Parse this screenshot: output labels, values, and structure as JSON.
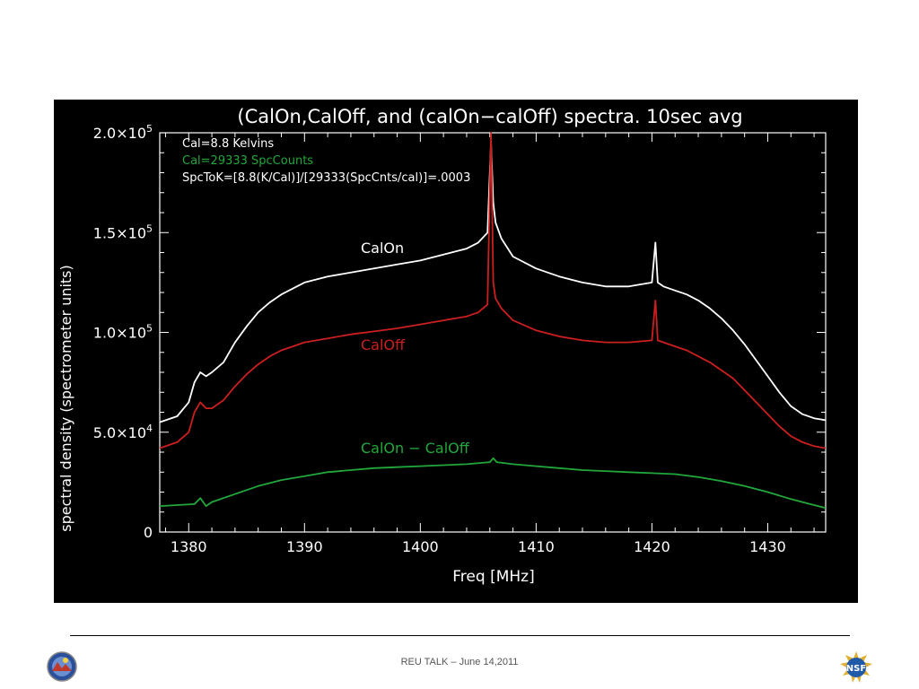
{
  "footer": {
    "text": "REU TALK – June 14,2011"
  },
  "logos": {
    "left": "observatory-logo",
    "right": "nsf-logo",
    "right_text": "NSF"
  },
  "colors": {
    "background": "#000000",
    "calon": "#ffffff",
    "caloff": "#cc1f1f",
    "diff": "#22a83a"
  },
  "chart_data": {
    "type": "line",
    "title": "(CalOn,CalOff, and (calOn−calOff) spectra. 10sec avg",
    "xlabel": "Freq [MHz]",
    "ylabel": "spectral density (spectrometer units)",
    "xlim": [
      1377.5,
      1435
    ],
    "ylim": [
      0,
      200000
    ],
    "xticks": [
      1380,
      1390,
      1400,
      1410,
      1420,
      1430
    ],
    "xtick_labels": [
      "1380",
      "1390",
      "1400",
      "1410",
      "1420",
      "1430"
    ],
    "yticks": [
      0,
      50000,
      100000,
      150000,
      200000
    ],
    "ytick_labels": [
      {
        "mant": "0",
        "exp": ""
      },
      {
        "mant": "5.0×10",
        "exp": "4"
      },
      {
        "mant": "1.0×10",
        "exp": "5"
      },
      {
        "mant": "1.5×10",
        "exp": "5"
      },
      {
        "mant": "2.0×10",
        "exp": "5"
      }
    ],
    "annotations": [
      {
        "text": "Cal=8.8  Kelvins",
        "color": "#ffffff"
      },
      {
        "text": "Cal=29333  SpcCounts",
        "color": "#22a83a"
      },
      {
        "text": "SpcToK=[8.8(K/Cal)]/[29333(SpcCnts/cal)]=.0003",
        "color": "#ffffff"
      }
    ],
    "series": [
      {
        "name": "CalOn",
        "color": "#ffffff",
        "x": [
          1377.5,
          1379,
          1380,
          1380.5,
          1381,
          1381.5,
          1382,
          1383,
          1384,
          1385,
          1386,
          1387,
          1388,
          1389,
          1390,
          1392,
          1394,
          1396,
          1398,
          1400,
          1402,
          1404,
          1405,
          1405.8,
          1406.1,
          1406.3,
          1406.5,
          1407,
          1408,
          1410,
          1412,
          1414,
          1416,
          1418,
          1420,
          1420.3,
          1420.5,
          1421,
          1422,
          1423,
          1424,
          1425,
          1426,
          1427,
          1428,
          1429,
          1430,
          1431,
          1432,
          1433,
          1434,
          1435
        ],
        "y": [
          55000,
          58000,
          65000,
          75000,
          80000,
          78000,
          80000,
          85000,
          95000,
          103000,
          110000,
          115000,
          119000,
          122000,
          125000,
          128000,
          130000,
          132000,
          134000,
          136000,
          139000,
          142000,
          145000,
          150000,
          195000,
          165000,
          155000,
          147000,
          138000,
          132000,
          128000,
          125000,
          123000,
          123000,
          125000,
          145000,
          125000,
          123000,
          121000,
          119000,
          116000,
          112000,
          107000,
          101000,
          94000,
          86000,
          78000,
          70000,
          63000,
          59000,
          57000,
          56000
        ]
      },
      {
        "name": "CalOff",
        "color": "#cc1f1f",
        "x": [
          1377.5,
          1379,
          1380,
          1380.5,
          1381,
          1381.5,
          1382,
          1383,
          1384,
          1385,
          1386,
          1387,
          1388,
          1389,
          1390,
          1392,
          1394,
          1396,
          1398,
          1400,
          1402,
          1404,
          1405,
          1405.8,
          1406.1,
          1406.3,
          1406.5,
          1407,
          1408,
          1410,
          1412,
          1414,
          1416,
          1418,
          1420,
          1420.3,
          1420.5,
          1421,
          1422,
          1423,
          1424,
          1425,
          1426,
          1427,
          1428,
          1429,
          1430,
          1431,
          1432,
          1433,
          1434,
          1435
        ],
        "y": [
          42000,
          45000,
          50000,
          60000,
          65000,
          62000,
          62000,
          66000,
          73000,
          79000,
          84000,
          88000,
          91000,
          93000,
          95000,
          97000,
          99000,
          100500,
          102000,
          104000,
          106000,
          108000,
          110000,
          114000,
          200000,
          125000,
          117000,
          112000,
          106000,
          101000,
          98000,
          96000,
          95000,
          95000,
          96000,
          116000,
          96000,
          95000,
          93000,
          91000,
          88000,
          85000,
          81000,
          77000,
          71000,
          65000,
          59000,
          53000,
          48000,
          45000,
          43000,
          42000
        ]
      },
      {
        "name": "CalOn − CalOff",
        "color": "#22a83a",
        "x": [
          1377.5,
          1379,
          1380.5,
          1381,
          1381.5,
          1382,
          1384,
          1386,
          1388,
          1390,
          1392,
          1394,
          1396,
          1398,
          1400,
          1402,
          1404,
          1406,
          1406.3,
          1406.6,
          1408,
          1410,
          1412,
          1414,
          1416,
          1418,
          1420,
          1422,
          1424,
          1426,
          1428,
          1430,
          1432,
          1434,
          1435
        ],
        "y": [
          13000,
          13500,
          14000,
          17000,
          13000,
          15000,
          19000,
          23000,
          26000,
          28000,
          30000,
          31000,
          32000,
          32500,
          33000,
          33500,
          34000,
          35000,
          37000,
          35000,
          34000,
          33000,
          32000,
          31000,
          30500,
          30000,
          29500,
          29000,
          27500,
          25500,
          23000,
          20000,
          16500,
          13500,
          12000
        ]
      }
    ],
    "series_labels": [
      {
        "text": "CalOn",
        "color": "#ffffff"
      },
      {
        "text": "CalOff",
        "color": "#cc1f1f"
      },
      {
        "text": "CalOn  −  CalOff",
        "color": "#22a83a"
      }
    ]
  }
}
